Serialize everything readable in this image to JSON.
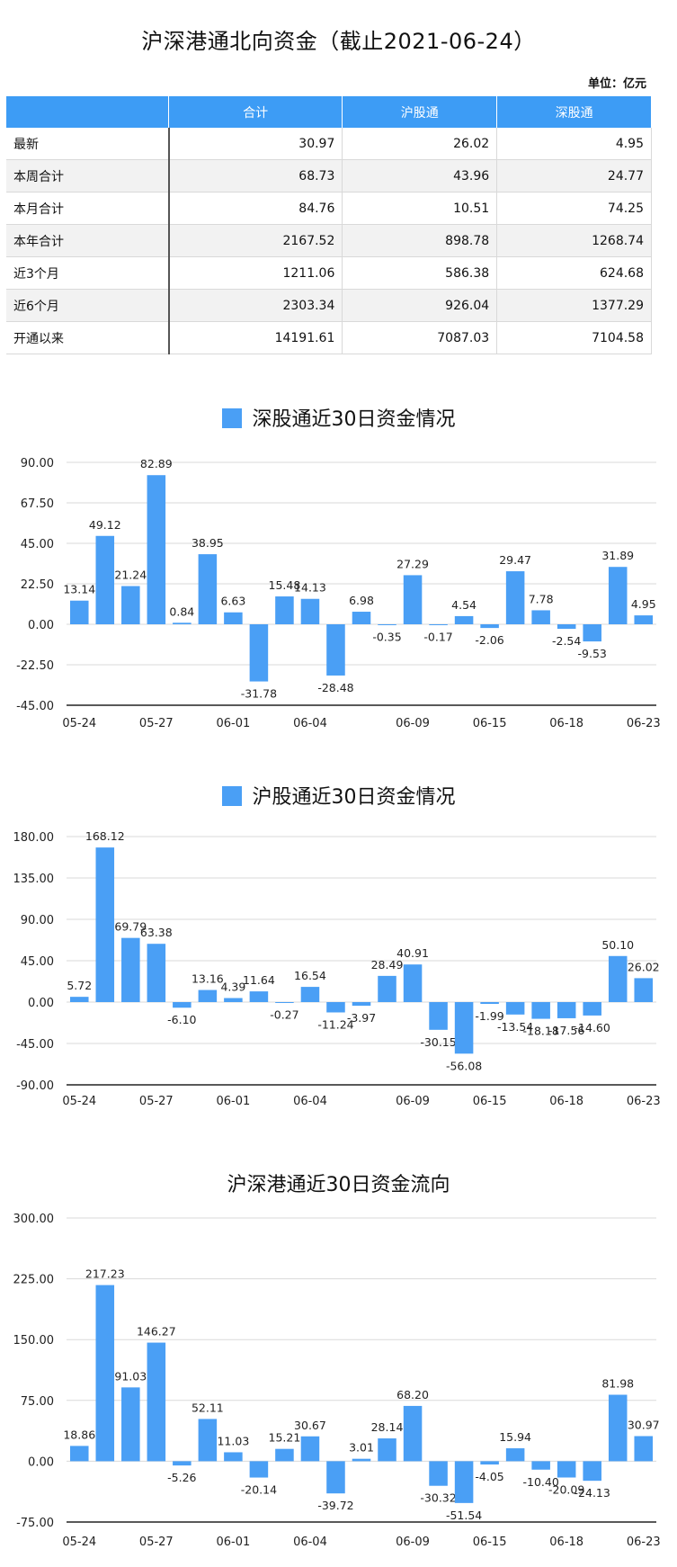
{
  "page_title": "沪深港通北向资金（截止2021-06-24）",
  "unit_label": "单位：亿元",
  "colors": {
    "bar": "#4a9ff5",
    "header": "#3d9cf5",
    "grid": "#d9d9d9"
  },
  "summary_table": {
    "headers": [
      "",
      "合计",
      "沪股通",
      "深股通"
    ],
    "rows": [
      [
        "最新",
        "30.97",
        "26.02",
        "4.95"
      ],
      [
        "本周合计",
        "68.73",
        "43.96",
        "24.77"
      ],
      [
        "本月合计",
        "84.76",
        "10.51",
        "74.25"
      ],
      [
        "本年合计",
        "2167.52",
        "898.78",
        "1268.74"
      ],
      [
        "近3个月",
        "1211.06",
        "586.38",
        "624.68"
      ],
      [
        "近6个月",
        "2303.34",
        "926.04",
        "1377.29"
      ],
      [
        "开通以来",
        "14191.61",
        "7087.03",
        "7104.58"
      ]
    ]
  },
  "chart_data": [
    {
      "type": "bar",
      "title": "深股通近30日资金情况",
      "legend": [
        "深股通近30日资金情况"
      ],
      "x_tick_labels": [
        "05-24",
        "05-27",
        "06-01",
        "06-04",
        "06-09",
        "06-15",
        "06-18",
        "06-23"
      ],
      "y_tick_labels": [
        "90.00",
        "67.50",
        "45.00",
        "22.50",
        "0.00",
        "-22.50",
        "-45.00"
      ],
      "ylim": [
        -45,
        90
      ],
      "values": [
        13.14,
        49.12,
        21.24,
        82.89,
        0.84,
        38.95,
        6.63,
        -31.78,
        15.48,
        14.13,
        -28.48,
        6.98,
        -0.35,
        27.29,
        -0.17,
        4.54,
        -2.06,
        29.47,
        7.78,
        -2.54,
        -9.53,
        31.89,
        4.95
      ],
      "value_labels": [
        "13.14",
        "49.12",
        "21.24",
        "82.89",
        "0.84",
        "38.95",
        "6.63",
        "-31.78",
        "15.48",
        "14.13",
        "-28.48",
        "6.98",
        "-0.35",
        "27.29",
        "-0.17",
        "4.54",
        "-2.06",
        "29.47",
        "7.78",
        "-2.54",
        "-9.53",
        "31.89",
        "4.95"
      ],
      "grid": true
    },
    {
      "type": "bar",
      "title": "沪股通近30日资金情况",
      "legend": [
        "沪股通近30日资金情况"
      ],
      "x_tick_labels": [
        "05-24",
        "05-27",
        "06-01",
        "06-04",
        "06-09",
        "06-15",
        "06-18",
        "06-23"
      ],
      "y_tick_labels": [
        "180.00",
        "135.00",
        "90.00",
        "45.00",
        "0.00",
        "-45.00",
        "-90.00"
      ],
      "ylim": [
        -90,
        180
      ],
      "values": [
        5.72,
        168.12,
        69.79,
        63.38,
        -6.1,
        13.16,
        4.39,
        11.64,
        -0.27,
        16.54,
        -11.24,
        -3.97,
        28.49,
        40.91,
        -30.15,
        -56.08,
        -1.99,
        -13.54,
        -18.18,
        -17.56,
        -14.6,
        50.1,
        26.02
      ],
      "value_labels": [
        "5.72",
        "168.12",
        "69.79",
        "63.38",
        "-6.10",
        "13.16",
        "4.39",
        "11.64",
        "-0.27",
        "16.54",
        "-11.24",
        "-3.97",
        "28.49",
        "40.91",
        "-30.15",
        "-56.08",
        "-1.99",
        "-13.54",
        "-18.18",
        "-17.56",
        "-14.60",
        "50.10",
        "26.02"
      ],
      "grid": true
    },
    {
      "type": "bar",
      "title": "沪深港通近30日资金流向",
      "x_tick_labels": [
        "05-24",
        "05-27",
        "06-01",
        "06-04",
        "06-09",
        "06-15",
        "06-18",
        "06-23"
      ],
      "y_tick_labels": [
        "300.00",
        "225.00",
        "150.00",
        "75.00",
        "0.00",
        "-75.00"
      ],
      "ylim": [
        -75,
        300
      ],
      "values": [
        18.86,
        217.23,
        91.03,
        146.27,
        -5.26,
        52.11,
        11.03,
        -20.14,
        15.21,
        30.67,
        -39.72,
        3.01,
        28.14,
        68.2,
        -30.32,
        -51.54,
        -4.05,
        15.94,
        -10.4,
        -20.09,
        -24.13,
        81.98,
        30.97
      ],
      "value_labels": [
        "18.86",
        "217.23",
        "91.03",
        "146.27",
        "-5.26",
        "52.11",
        "11.03",
        "-20.14",
        "15.21",
        "30.67",
        "-39.72",
        "3.01",
        "28.14",
        "68.20",
        "-30.32",
        "-51.54",
        "-4.05",
        "15.94",
        "-10.40",
        "-20.09",
        "-24.13",
        "81.98",
        "30.97"
      ],
      "grid": true
    }
  ]
}
